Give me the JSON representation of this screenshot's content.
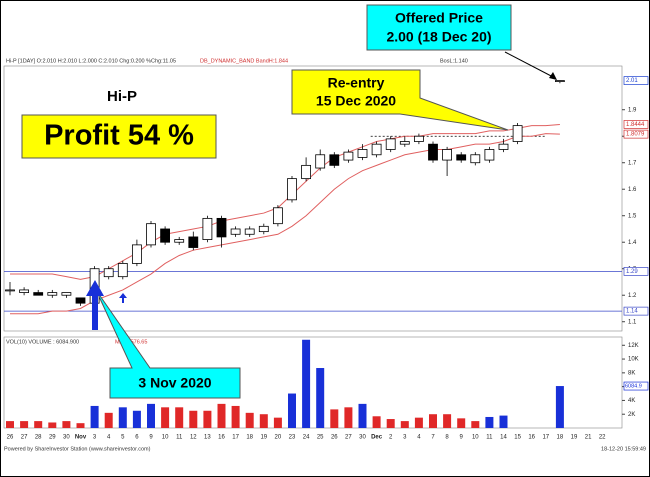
{
  "chart_data": {
    "type": "candlestick",
    "header": "Hi-P [1DAY] O:2.010 H:2.010 L:2.000 C:2.010 Chg:0.200 %Chg:11.05",
    "band_header": "DB_DYNAMIC_BAND BandH:1.844",
    "band_header_right": "BosL:1.140",
    "volume_header": "VOL(10) VOLUME : 6084.900",
    "volume_ma_header": "MA : 1576.65",
    "footer": "Powered by ShareInvestor Station (www.shareinvestor.com)",
    "timestamp": "18-12-20 15:59:49",
    "annotations": {
      "stock": "Hi-P",
      "profit": "Profit 54 %",
      "offer_line1": "Offered Price",
      "offer_line2": "2.00 (18 Dec 20)",
      "reentry_line1": "Re-entry",
      "reentry_line2": "15 Dec 2020",
      "entry": "3 Nov 2020"
    },
    "categories": [
      "26",
      "27",
      "28",
      "29",
      "30",
      "Nov",
      "3",
      "4",
      "5",
      "6",
      "9",
      "10",
      "11",
      "12",
      "13",
      "16",
      "17",
      "18",
      "19",
      "20",
      "23",
      "24",
      "25",
      "26",
      "27",
      "30",
      "Dec",
      "2",
      "3",
      "4",
      "7",
      "8",
      "9",
      "10",
      "11",
      "14",
      "15",
      "16",
      "17",
      "18",
      "19",
      "21",
      "22"
    ],
    "open": [
      1.22,
      1.21,
      1.21,
      1.2,
      1.2,
      1.19,
      1.17,
      1.27,
      1.27,
      1.32,
      1.39,
      1.45,
      1.4,
      1.42,
      1.41,
      1.49,
      1.43,
      1.43,
      1.44,
      1.47,
      1.56,
      1.64,
      1.68,
      1.73,
      1.71,
      1.72,
      1.73,
      1.75,
      1.77,
      1.78,
      1.77,
      1.71,
      1.73,
      1.7,
      1.71,
      1.75,
      1.78,
      null,
      null,
      2.01,
      null,
      null,
      null
    ],
    "high": [
      1.25,
      1.23,
      1.22,
      1.22,
      1.21,
      1.19,
      1.31,
      1.31,
      1.33,
      1.41,
      1.48,
      1.46,
      1.42,
      1.44,
      1.5,
      1.5,
      1.46,
      1.46,
      1.47,
      1.54,
      1.65,
      1.72,
      1.75,
      1.74,
      1.75,
      1.77,
      1.78,
      1.8,
      1.8,
      1.81,
      1.78,
      1.76,
      1.74,
      1.74,
      1.76,
      1.79,
      1.85,
      null,
      null,
      2.01,
      null,
      null,
      null
    ],
    "low": [
      1.2,
      1.2,
      1.2,
      1.19,
      1.19,
      1.16,
      1.16,
      1.26,
      1.26,
      1.31,
      1.38,
      1.39,
      1.39,
      1.37,
      1.4,
      1.38,
      1.42,
      1.42,
      1.43,
      1.46,
      1.55,
      1.63,
      1.67,
      1.68,
      1.7,
      1.71,
      1.72,
      1.74,
      1.76,
      1.77,
      1.7,
      1.65,
      1.7,
      1.69,
      1.7,
      1.74,
      1.77,
      null,
      null,
      2.0,
      null,
      null,
      null
    ],
    "close": [
      1.22,
      1.22,
      1.2,
      1.21,
      1.21,
      1.17,
      1.3,
      1.3,
      1.32,
      1.39,
      1.47,
      1.4,
      1.41,
      1.38,
      1.49,
      1.42,
      1.45,
      1.45,
      1.46,
      1.53,
      1.64,
      1.69,
      1.73,
      1.69,
      1.74,
      1.75,
      1.77,
      1.79,
      1.78,
      1.8,
      1.71,
      1.75,
      1.71,
      1.73,
      1.75,
      1.77,
      1.84,
      null,
      null,
      2.01,
      null,
      null,
      null
    ],
    "bands": [
      {
        "color": "#e06060",
        "values": [
          1.28,
          1.28,
          1.28,
          1.28,
          1.27,
          1.26,
          1.27,
          1.3,
          1.33,
          1.36,
          1.4,
          1.43,
          1.44,
          1.45,
          1.46,
          1.48,
          1.49,
          1.5,
          1.51,
          1.53,
          1.58,
          1.63,
          1.68,
          1.72,
          1.74,
          1.76,
          1.78,
          1.79,
          1.8,
          1.8,
          1.81,
          1.81,
          1.81,
          1.81,
          1.82,
          1.82,
          1.83,
          1.84,
          1.84,
          1.8444,
          null,
          null,
          null
        ]
      },
      {
        "color": "#e06060",
        "values": [
          1.13,
          1.13,
          1.13,
          1.14,
          1.14,
          1.15,
          1.18,
          1.2,
          1.22,
          1.25,
          1.28,
          1.32,
          1.35,
          1.37,
          1.38,
          1.39,
          1.4,
          1.41,
          1.42,
          1.43,
          1.46,
          1.5,
          1.55,
          1.6,
          1.64,
          1.67,
          1.69,
          1.71,
          1.73,
          1.74,
          1.75,
          1.75,
          1.76,
          1.77,
          1.77,
          1.78,
          1.8,
          1.8,
          1.81,
          1.8079,
          null,
          null,
          null
        ]
      }
    ],
    "ylim": [
      1.065,
      2.065
    ],
    "yticks": [
      1.1,
      1.2,
      1.3,
      1.4,
      1.5,
      1.6,
      1.7,
      1.8,
      1.9
    ],
    "markers": [
      {
        "value": 2.01,
        "color": "#1a3fd0"
      },
      {
        "value": 1.8444,
        "color": "#d03030"
      },
      {
        "value": 1.8079,
        "color": "#d03030"
      },
      {
        "value": 1.29,
        "color": "#3a48c8",
        "line": true
      },
      {
        "value": 1.14,
        "color": "#3a48c8",
        "line": true
      }
    ],
    "resistance": 1.8,
    "volume": [
      1000,
      1000,
      1000,
      800,
      1000,
      700,
      3200,
      2200,
      3000,
      2500,
      3500,
      3000,
      3000,
      2500,
      2500,
      3500,
      3200,
      2200,
      2000,
      1500,
      5000,
      12800,
      8700,
      2700,
      3000,
      3500,
      1700,
      1300,
      1000,
      1500,
      2000,
      2000,
      1400,
      1000,
      1600,
      1800,
      null,
      null,
      null,
      6084.9,
      null,
      null,
      null
    ],
    "volume_colors": [
      "#e02828",
      "#e02828",
      "#e02828",
      "#e02828",
      "#e02828",
      "#e02828",
      "#1830d8",
      "#e02828",
      "#1830d8",
      "#1830d8",
      "#1830d8",
      "#e02828",
      "#e02828",
      "#e02828",
      "#e02828",
      "#e02828",
      "#e02828",
      "#e02828",
      "#e02828",
      "#e02828",
      "#1830d8",
      "#1830d8",
      "#1830d8",
      "#e02828",
      "#e02828",
      "#1830d8",
      "#e02828",
      "#e02828",
      "#e02828",
      "#e02828",
      "#e02828",
      "#e02828",
      "#e02828",
      "#e02828",
      "#1830d8",
      "#1830d8",
      null,
      null,
      null,
      "#1830d8",
      null,
      null,
      null
    ],
    "vlim": [
      0,
      13200
    ],
    "vticks": [
      {
        "value": 2000,
        "label": "2K"
      },
      {
        "value": 4000,
        "label": "4K"
      },
      {
        "value": 6000,
        "label": "6K"
      },
      {
        "value": 8000,
        "label": "8K"
      },
      {
        "value": 10000,
        "label": "10K"
      },
      {
        "value": 12000,
        "label": "12K"
      }
    ],
    "volume_marker": 6084.9
  }
}
